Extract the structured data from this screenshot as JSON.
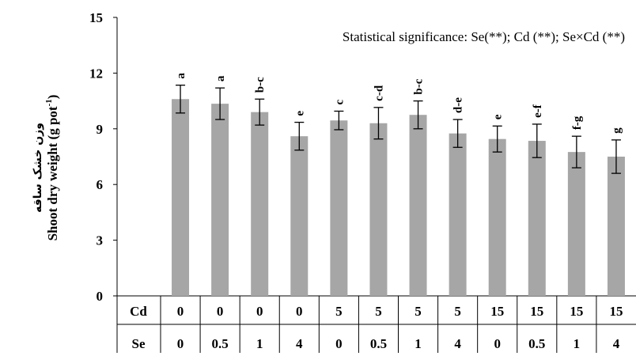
{
  "chart_data": {
    "type": "bar",
    "annotation": "Statistical significance: Se(**); Cd (**); Se×Cd (**)",
    "ylabel_fa": "وزن خشک ساقه",
    "ylabel_en": "Shoot dry weight (g pot",
    "ylabel_sup": "-1",
    "ylabel_close": ")",
    "ylim": [
      0,
      15
    ],
    "yticks": [
      "0",
      "3",
      "6",
      "9",
      "12",
      "15"
    ],
    "row_labels": [
      "Cd",
      "Se"
    ],
    "cd": [
      "0",
      "0",
      "0",
      "0",
      "5",
      "5",
      "5",
      "5",
      "15",
      "15",
      "15",
      "15"
    ],
    "se": [
      "0",
      "0.5",
      "1",
      "4",
      "0",
      "0.5",
      "1",
      "4",
      "0",
      "0.5",
      "1",
      "4"
    ],
    "values": [
      10.6,
      10.35,
      9.9,
      8.6,
      9.45,
      9.3,
      9.75,
      8.75,
      8.45,
      8.35,
      7.75,
      7.5
    ],
    "errors": [
      0.75,
      0.85,
      0.7,
      0.75,
      0.5,
      0.85,
      0.75,
      0.75,
      0.7,
      0.9,
      0.85,
      0.9
    ],
    "letters": [
      "a",
      "a",
      "b-c",
      "e",
      "c",
      "c-d",
      "b-c",
      "d-e",
      "e",
      "e-f",
      "f-g",
      "g"
    ],
    "bar_color": "#a6a6a6",
    "error_color": "#000000"
  }
}
